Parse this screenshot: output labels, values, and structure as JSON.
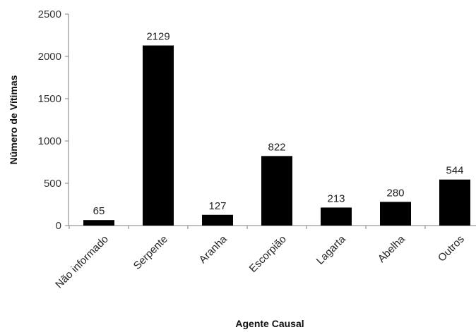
{
  "chart_data": {
    "type": "bar",
    "title": "",
    "xlabel": "Agente Causal",
    "ylabel": "Número de Vítimas",
    "categories": [
      "Não informado",
      "Serpente",
      "Aranha",
      "Escorpião",
      "Lagarta",
      "Abelha",
      "Outros"
    ],
    "values": [
      65,
      2129,
      127,
      822,
      213,
      280,
      544
    ],
    "data_labels": [
      "65",
      "2129",
      "127",
      "822",
      "213",
      "280",
      "544"
    ],
    "ylim": [
      0,
      2500
    ],
    "yticks": [
      0,
      500,
      1000,
      1500,
      2000,
      2500
    ],
    "ytick_labels": [
      "0",
      "500",
      "1000",
      "1500",
      "2000",
      "2500"
    ],
    "grid": false,
    "legend": "none",
    "bar_color": "#000000"
  }
}
